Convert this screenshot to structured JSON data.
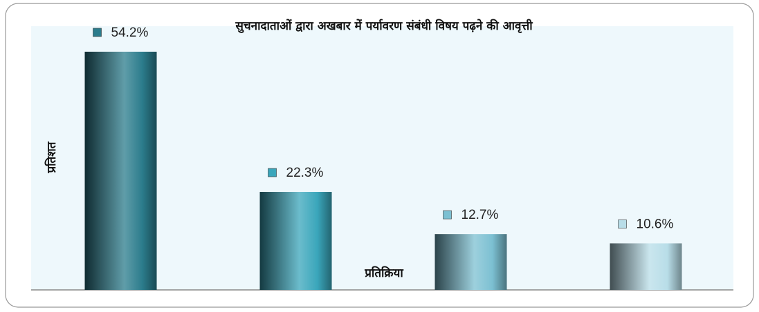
{
  "chart_data": {
    "type": "bar",
    "title": "सुचनादाताओं द्वारा अखबार में पर्यावरण संबंधी विषय पढ़ने की आवृत्ती",
    "y_label": "प्रतिशत",
    "x_label": "प्रतिक्रिया",
    "categories": [
      null,
      null,
      null,
      null
    ],
    "values": [
      54.2,
      22.3,
      12.7,
      10.6
    ],
    "value_labels": [
      "54.2%",
      "22.3%",
      "12.7%",
      "10.6%"
    ],
    "colors": [
      "#2b7c8c",
      "#3aa6bb",
      "#7cc0d2",
      "#b8dde8"
    ],
    "ylim": [
      0,
      60
    ]
  }
}
